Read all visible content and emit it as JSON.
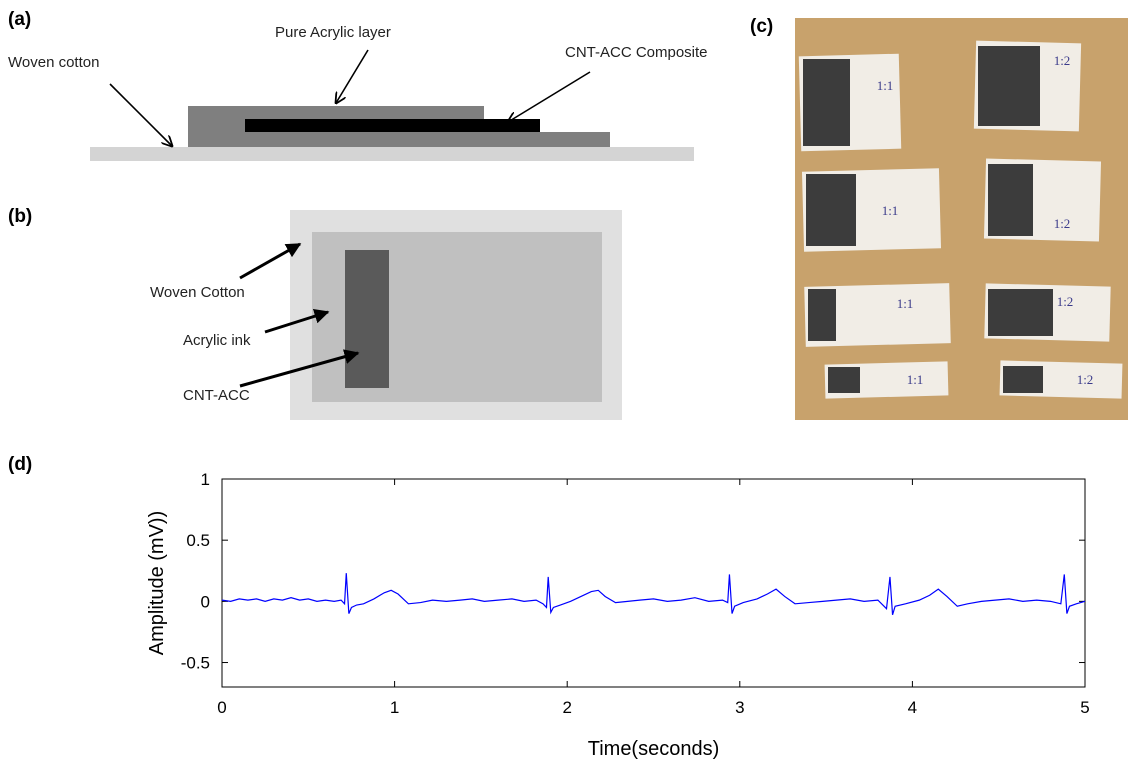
{
  "labels": [
    "(a)",
    "(b)",
    "(c)",
    "(d)"
  ],
  "panel_a": {
    "base": "Woven cotton",
    "top": "Pure Acrylic layer",
    "core": "CNT-ACC Composite"
  },
  "panel_b": {
    "outer": "Woven Cotton",
    "middle": "Acrylic ink",
    "inner": "CNT-ACC"
  },
  "panel_c": {
    "pieces": [
      "1:1",
      "1:2",
      "1:1",
      "1:2",
      "1:1",
      "1:2",
      "1:1",
      "1:2"
    ]
  },
  "chart_data": {
    "type": "line",
    "xlabel": "Time(seconds)",
    "ylabel": "Amplitude (mV))",
    "color": "#0000ff",
    "x": [
      0,
      0.05,
      0.1,
      0.15,
      0.2,
      0.25,
      0.3,
      0.35,
      0.4,
      0.45,
      0.5,
      0.55,
      0.6,
      0.65,
      0.69,
      0.71,
      0.72,
      0.735,
      0.75,
      0.78,
      0.82,
      0.88,
      0.94,
      0.98,
      1.02,
      1.08,
      1.15,
      1.22,
      1.3,
      1.38,
      1.45,
      1.52,
      1.6,
      1.68,
      1.75,
      1.82,
      1.86,
      1.88,
      1.89,
      1.905,
      1.92,
      1.96,
      2.02,
      2.08,
      2.14,
      2.18,
      2.22,
      2.28,
      2.35,
      2.42,
      2.5,
      2.58,
      2.66,
      2.74,
      2.82,
      2.9,
      2.93,
      2.94,
      2.955,
      2.97,
      3.02,
      3.1,
      3.16,
      3.21,
      3.26,
      3.32,
      3.4,
      3.48,
      3.56,
      3.64,
      3.72,
      3.8,
      3.85,
      3.87,
      3.885,
      3.9,
      3.96,
      4.04,
      4.1,
      4.15,
      4.2,
      4.26,
      4.32,
      4.4,
      4.48,
      4.56,
      4.64,
      4.72,
      4.8,
      4.86,
      4.88,
      4.895,
      4.91,
      4.95,
      5
    ],
    "values": [
      0.01,
      0.0,
      0.02,
      0.01,
      0.02,
      0.0,
      0.02,
      0.01,
      0.03,
      0.01,
      0.02,
      0.0,
      0.01,
      0.0,
      0.01,
      -0.02,
      0.23,
      -0.1,
      -0.05,
      -0.03,
      -0.02,
      0.02,
      0.07,
      0.09,
      0.06,
      -0.02,
      -0.01,
      0.01,
      0.0,
      0.01,
      0.02,
      0.0,
      0.01,
      0.02,
      0.0,
      0.01,
      -0.02,
      -0.05,
      0.2,
      -0.09,
      -0.05,
      -0.03,
      0.0,
      0.04,
      0.08,
      0.09,
      0.04,
      -0.01,
      0.0,
      0.01,
      0.02,
      0.0,
      0.01,
      0.03,
      0.0,
      0.01,
      -0.01,
      0.22,
      -0.1,
      -0.04,
      -0.01,
      0.02,
      0.06,
      0.1,
      0.04,
      -0.02,
      -0.01,
      0.0,
      0.01,
      0.02,
      0.0,
      0.01,
      -0.06,
      0.2,
      -0.11,
      -0.04,
      -0.02,
      0.01,
      0.05,
      0.1,
      0.04,
      -0.04,
      -0.02,
      0.0,
      0.01,
      0.02,
      0.0,
      0.01,
      0.0,
      -0.02,
      0.22,
      -0.1,
      -0.04,
      -0.02,
      0.0
    ],
    "xlim": [
      0,
      5
    ],
    "ylim": [
      -0.7,
      1
    ],
    "xticks": [
      0,
      1,
      2,
      3,
      4,
      5
    ],
    "yticks": [
      -0.5,
      0,
      0.5,
      1
    ]
  }
}
